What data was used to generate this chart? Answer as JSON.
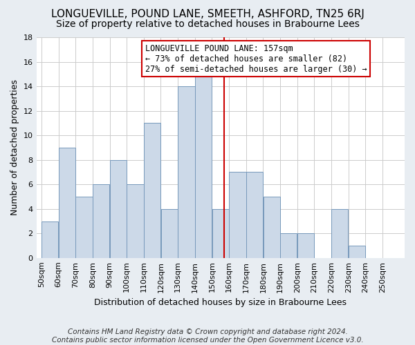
{
  "title": "LONGUEVILLE, POUND LANE, SMEETH, ASHFORD, TN25 6RJ",
  "subtitle": "Size of property relative to detached houses in Brabourne Lees",
  "xlabel": "Distribution of detached houses by size in Brabourne Lees",
  "ylabel": "Number of detached properties",
  "footer_line1": "Contains HM Land Registry data © Crown copyright and database right 2024.",
  "footer_line2": "Contains public sector information licensed under the Open Government Licence v3.0.",
  "bin_labels": [
    "50sqm",
    "60sqm",
    "70sqm",
    "80sqm",
    "90sqm",
    "100sqm",
    "110sqm",
    "120sqm",
    "130sqm",
    "140sqm",
    "150sqm",
    "160sqm",
    "170sqm",
    "180sqm",
    "190sqm",
    "200sqm",
    "210sqm",
    "220sqm",
    "230sqm",
    "240sqm",
    "250sqm"
  ],
  "bin_edges": [
    50,
    60,
    70,
    80,
    90,
    100,
    110,
    120,
    130,
    140,
    150,
    160,
    170,
    180,
    190,
    200,
    210,
    220,
    230,
    240,
    250
  ],
  "counts": [
    3,
    9,
    5,
    6,
    8,
    6,
    11,
    4,
    14,
    15,
    4,
    7,
    7,
    5,
    2,
    2,
    0,
    4,
    1,
    0
  ],
  "bar_color": "#ccd9e8",
  "bar_edge_color": "#7799bb",
  "vline_x": 157,
  "vline_color": "#cc0000",
  "annotation_title": "LONGUEVILLE POUND LANE: 157sqm",
  "annotation_line1": "← 73% of detached houses are smaller (82)",
  "annotation_line2": "27% of semi-detached houses are larger (30) →",
  "annotation_box_color": "white",
  "annotation_box_edge": "#cc0000",
  "ylim": [
    0,
    18
  ],
  "xlim_left": 47,
  "xlim_right": 263,
  "bg_color": "#e8edf2",
  "plot_bg_color": "white",
  "grid_color": "#cccccc",
  "title_fontsize": 11,
  "subtitle_fontsize": 10,
  "axis_label_fontsize": 9,
  "tick_fontsize": 8,
  "footer_fontsize": 7.5,
  "annotation_fontsize": 8.5
}
